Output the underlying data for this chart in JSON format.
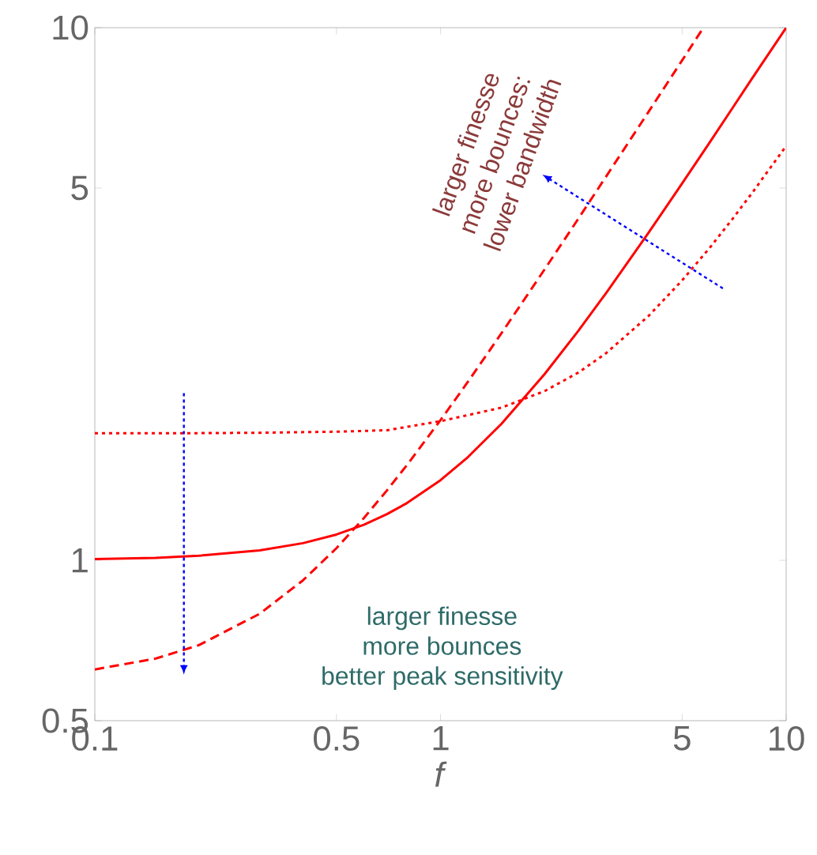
{
  "chart_data": {
    "type": "line",
    "xlabel": "*f*",
    "log": "xy",
    "grid": false,
    "marker": "none",
    "xlim": [
      0.1,
      10
    ],
    "ylim": [
      0.5,
      10
    ],
    "xticks": [
      0.1,
      0.5,
      1,
      5,
      10
    ],
    "yticks": [
      0.5,
      1,
      5,
      10
    ],
    "series": [
      {
        "color": "#ff0000",
        "line_style": "solid",
        "x": [
          0.1,
          0.15,
          0.2,
          0.3,
          0.4,
          0.5,
          0.6,
          0.7,
          0.8,
          1,
          1.2,
          1.5,
          2,
          2.5,
          3,
          4,
          5,
          6,
          7,
          8,
          10
        ],
        "values": [
          1.005,
          1.011,
          1.02,
          1.044,
          1.077,
          1.118,
          1.166,
          1.221,
          1.281,
          1.414,
          1.562,
          1.803,
          2.236,
          2.693,
          3.162,
          4.123,
          5.099,
          6.083,
          7.071,
          8.062,
          10.0
        ]
      },
      {
        "color": "#ff0000",
        "line_style": "dashed",
        "x": [
          0.1,
          0.15,
          0.2,
          0.3,
          0.4,
          0.5,
          0.6,
          0.7,
          0.8,
          1,
          1.2,
          1.5,
          2,
          2.5,
          3,
          4,
          5,
          5.75
        ],
        "values": [
          0.624,
          0.654,
          0.693,
          0.794,
          0.917,
          1.054,
          1.2,
          1.353,
          1.51,
          1.833,
          2.163,
          2.667,
          3.516,
          4.371,
          5.231,
          6.954,
          8.681,
          9.98
        ]
      },
      {
        "color": "#ff0000",
        "line_style": "dotted",
        "x": [
          0.1,
          0.2,
          0.3,
          0.5,
          0.7,
          1,
          1.5,
          2,
          2.5,
          3,
          4,
          5,
          6,
          7,
          8,
          10
        ],
        "values": [
          1.732,
          1.733,
          1.736,
          1.744,
          1.755,
          1.825,
          1.935,
          2.078,
          2.25,
          2.443,
          2.877,
          3.354,
          3.857,
          4.378,
          4.911,
          6.0
        ]
      }
    ],
    "annotations": [
      "larger finesse",
      "more bounces:",
      "lower bandwidth",
      "larger finesse",
      "more bounces",
      "better peak sensitivity"
    ]
  }
}
